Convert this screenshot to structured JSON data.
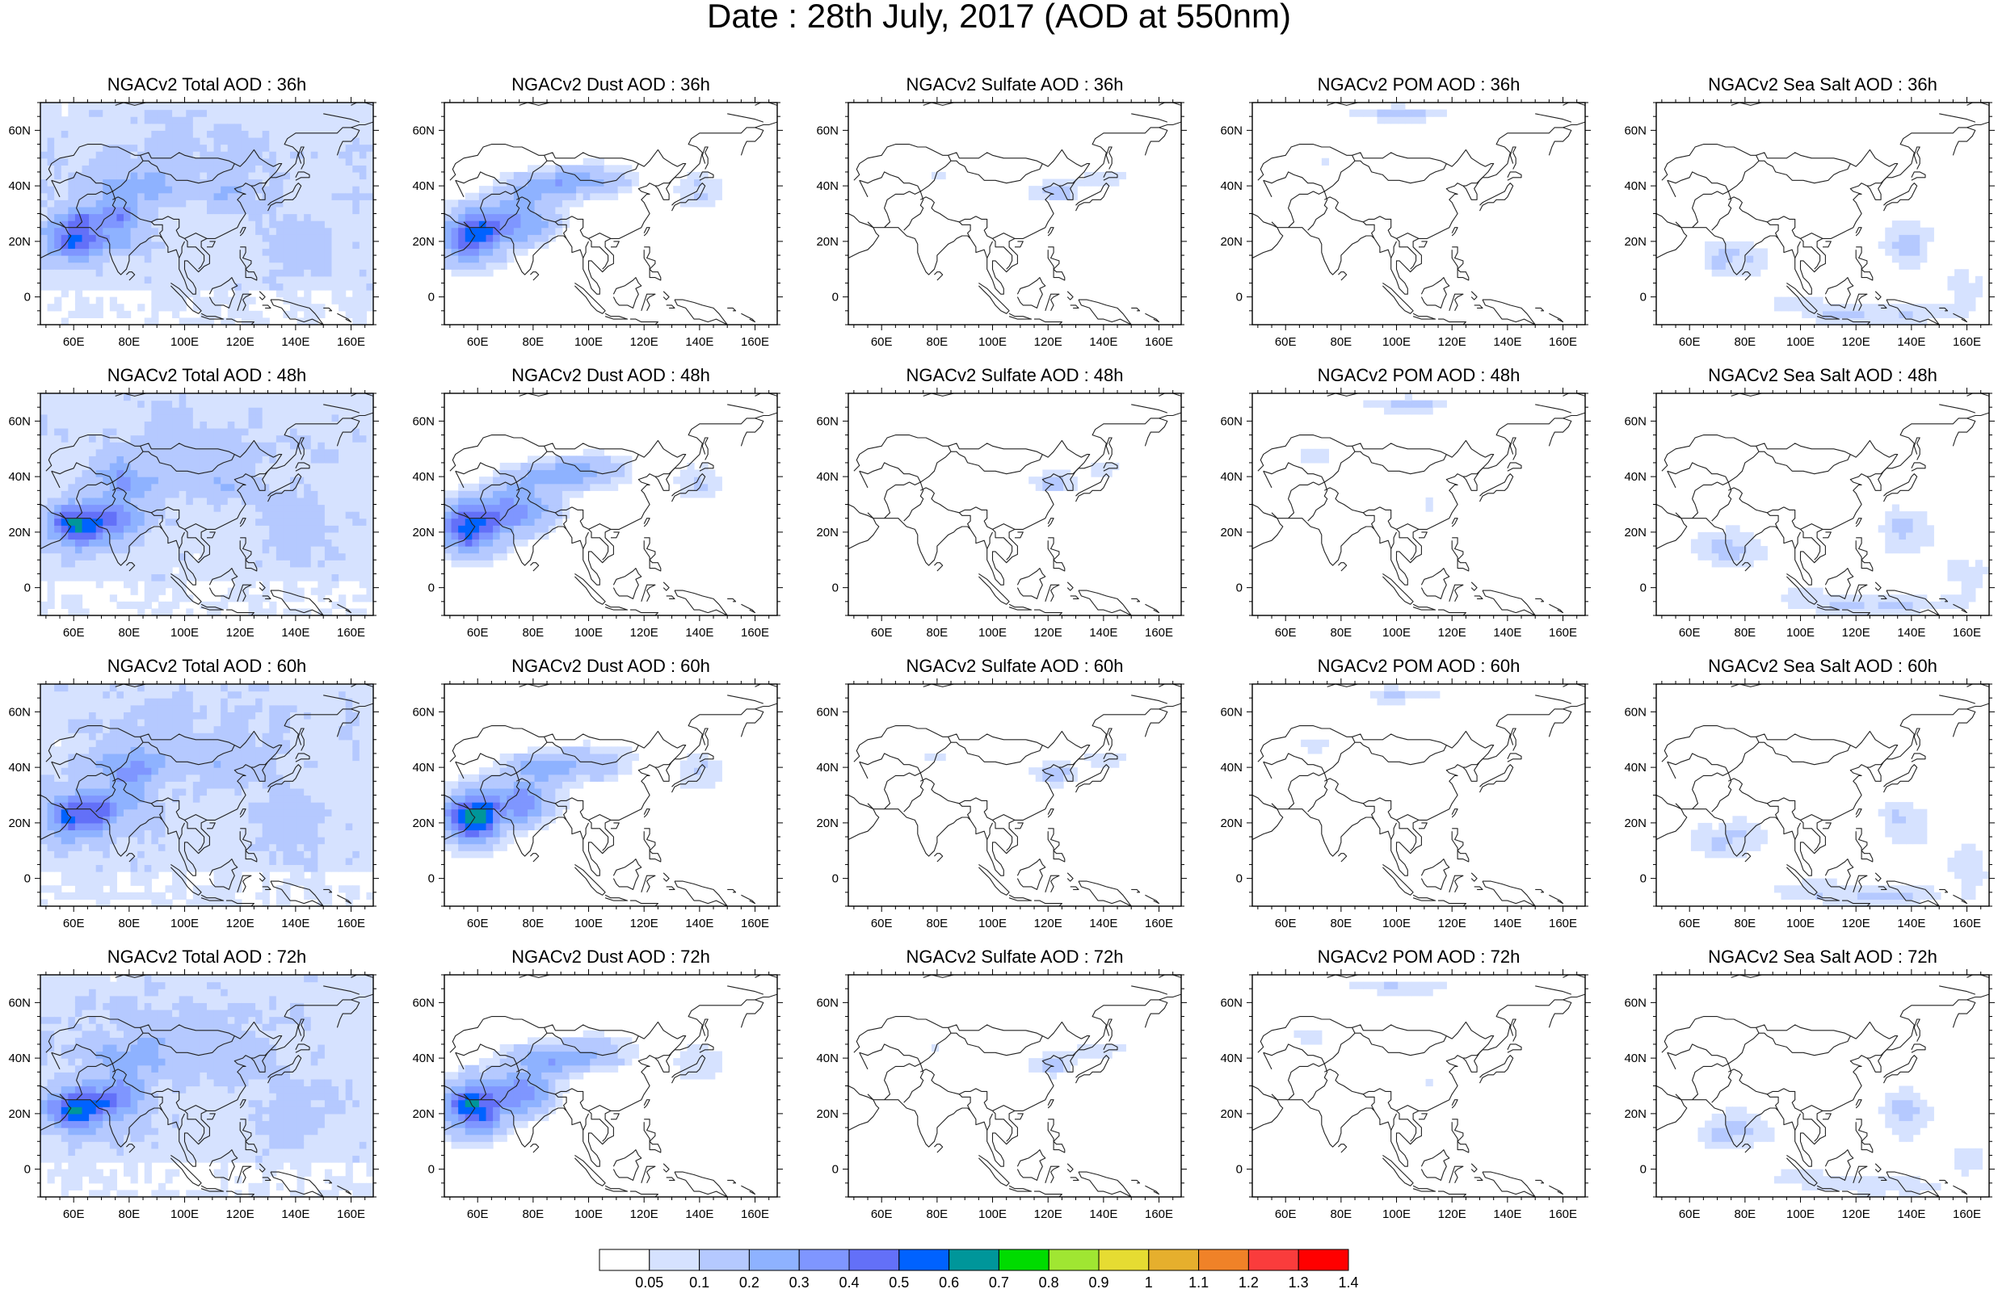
{
  "page_title": "Date : 28th July, 2017 (AOD at 550nm)",
  "lon_tick_labels": [
    "60E",
    "80E",
    "100E",
    "120E",
    "140E",
    "160E"
  ],
  "lat_tick_labels": [
    "60N",
    "40N",
    "20N",
    "0"
  ],
  "colors": {
    "levels": [
      "#ffffff",
      "#d6e2ff",
      "#b5c9ff",
      "#8eb2ff",
      "#7f96ff",
      "#6370f8",
      "#0062ff",
      "#00969a",
      "#00dc00",
      "#a0e632",
      "#e6dc32",
      "#e6af2d",
      "#f08228",
      "#fa3c3c",
      "#ff0000"
    ]
  },
  "chart_data": [
    {
      "type": "heatmap",
      "title": "NGACv2 Total AOD : 36h",
      "species": "total",
      "hour": 36,
      "xlim": [
        48,
        168
      ],
      "ylim": [
        -10,
        70
      ]
    },
    {
      "type": "heatmap",
      "title": "NGACv2 Dust AOD : 36h",
      "species": "dust",
      "hour": 36,
      "xlim": [
        48,
        168
      ],
      "ylim": [
        -10,
        70
      ]
    },
    {
      "type": "heatmap",
      "title": "NGACv2 Sulfate AOD : 36h",
      "species": "sulfate",
      "hour": 36,
      "xlim": [
        48,
        168
      ],
      "ylim": [
        -10,
        70
      ]
    },
    {
      "type": "heatmap",
      "title": "NGACv2 POM AOD : 36h",
      "species": "pom",
      "hour": 36,
      "xlim": [
        48,
        168
      ],
      "ylim": [
        -10,
        70
      ]
    },
    {
      "type": "heatmap",
      "title": "NGACv2 Sea Salt AOD : 36h",
      "species": "seasalt",
      "hour": 36,
      "xlim": [
        48,
        168
      ],
      "ylim": [
        -10,
        70
      ]
    },
    {
      "type": "heatmap",
      "title": "NGACv2 Total AOD : 48h",
      "species": "total",
      "hour": 48,
      "xlim": [
        48,
        168
      ],
      "ylim": [
        -10,
        70
      ]
    },
    {
      "type": "heatmap",
      "title": "NGACv2 Dust AOD : 48h",
      "species": "dust",
      "hour": 48,
      "xlim": [
        48,
        168
      ],
      "ylim": [
        -10,
        70
      ]
    },
    {
      "type": "heatmap",
      "title": "NGACv2 Sulfate AOD : 48h",
      "species": "sulfate",
      "hour": 48,
      "xlim": [
        48,
        168
      ],
      "ylim": [
        -10,
        70
      ]
    },
    {
      "type": "heatmap",
      "title": "NGACv2 POM AOD : 48h",
      "species": "pom",
      "hour": 48,
      "xlim": [
        48,
        168
      ],
      "ylim": [
        -10,
        70
      ]
    },
    {
      "type": "heatmap",
      "title": "NGACv2 Sea Salt AOD : 48h",
      "species": "seasalt",
      "hour": 48,
      "xlim": [
        48,
        168
      ],
      "ylim": [
        -10,
        70
      ]
    },
    {
      "type": "heatmap",
      "title": "NGACv2 Total AOD : 60h",
      "species": "total",
      "hour": 60,
      "xlim": [
        48,
        168
      ],
      "ylim": [
        -10,
        70
      ]
    },
    {
      "type": "heatmap",
      "title": "NGACv2 Dust AOD : 60h",
      "species": "dust",
      "hour": 60,
      "xlim": [
        48,
        168
      ],
      "ylim": [
        -10,
        70
      ]
    },
    {
      "type": "heatmap",
      "title": "NGACv2 Sulfate AOD : 60h",
      "species": "sulfate",
      "hour": 60,
      "xlim": [
        48,
        168
      ],
      "ylim": [
        -10,
        70
      ]
    },
    {
      "type": "heatmap",
      "title": "NGACv2 POM AOD : 60h",
      "species": "pom",
      "hour": 60,
      "xlim": [
        48,
        168
      ],
      "ylim": [
        -10,
        70
      ]
    },
    {
      "type": "heatmap",
      "title": "NGACv2 Sea Salt AOD : 60h",
      "species": "seasalt",
      "hour": 60,
      "xlim": [
        48,
        168
      ],
      "ylim": [
        -10,
        70
      ]
    },
    {
      "type": "heatmap",
      "title": "NGACv2 Total AOD : 72h",
      "species": "total",
      "hour": 72,
      "xlim": [
        48,
        168
      ],
      "ylim": [
        -10,
        70
      ]
    },
    {
      "type": "heatmap",
      "title": "NGACv2 Dust AOD : 72h",
      "species": "dust",
      "hour": 72,
      "xlim": [
        48,
        168
      ],
      "ylim": [
        -10,
        70
      ]
    },
    {
      "type": "heatmap",
      "title": "NGACv2 Sulfate AOD : 72h",
      "species": "sulfate",
      "hour": 72,
      "xlim": [
        48,
        168
      ],
      "ylim": [
        -10,
        70
      ]
    },
    {
      "type": "heatmap",
      "title": "NGACv2 POM AOD : 72h",
      "species": "pom",
      "hour": 72,
      "xlim": [
        48,
        168
      ],
      "ylim": [
        -10,
        70
      ]
    },
    {
      "type": "heatmap",
      "title": "NGACv2 Sea Salt  AOD : 72h",
      "species": "seasalt",
      "hour": 72,
      "xlim": [
        48,
        168
      ],
      "ylim": [
        -10,
        70
      ]
    }
  ],
  "colorbar": {
    "labels": [
      "0.05",
      "0.1",
      "0.2",
      "0.3",
      "0.4",
      "0.5",
      "0.6",
      "0.7",
      "0.8",
      "0.9",
      "1",
      "1.1",
      "1.2",
      "1.3",
      "1.4"
    ]
  }
}
